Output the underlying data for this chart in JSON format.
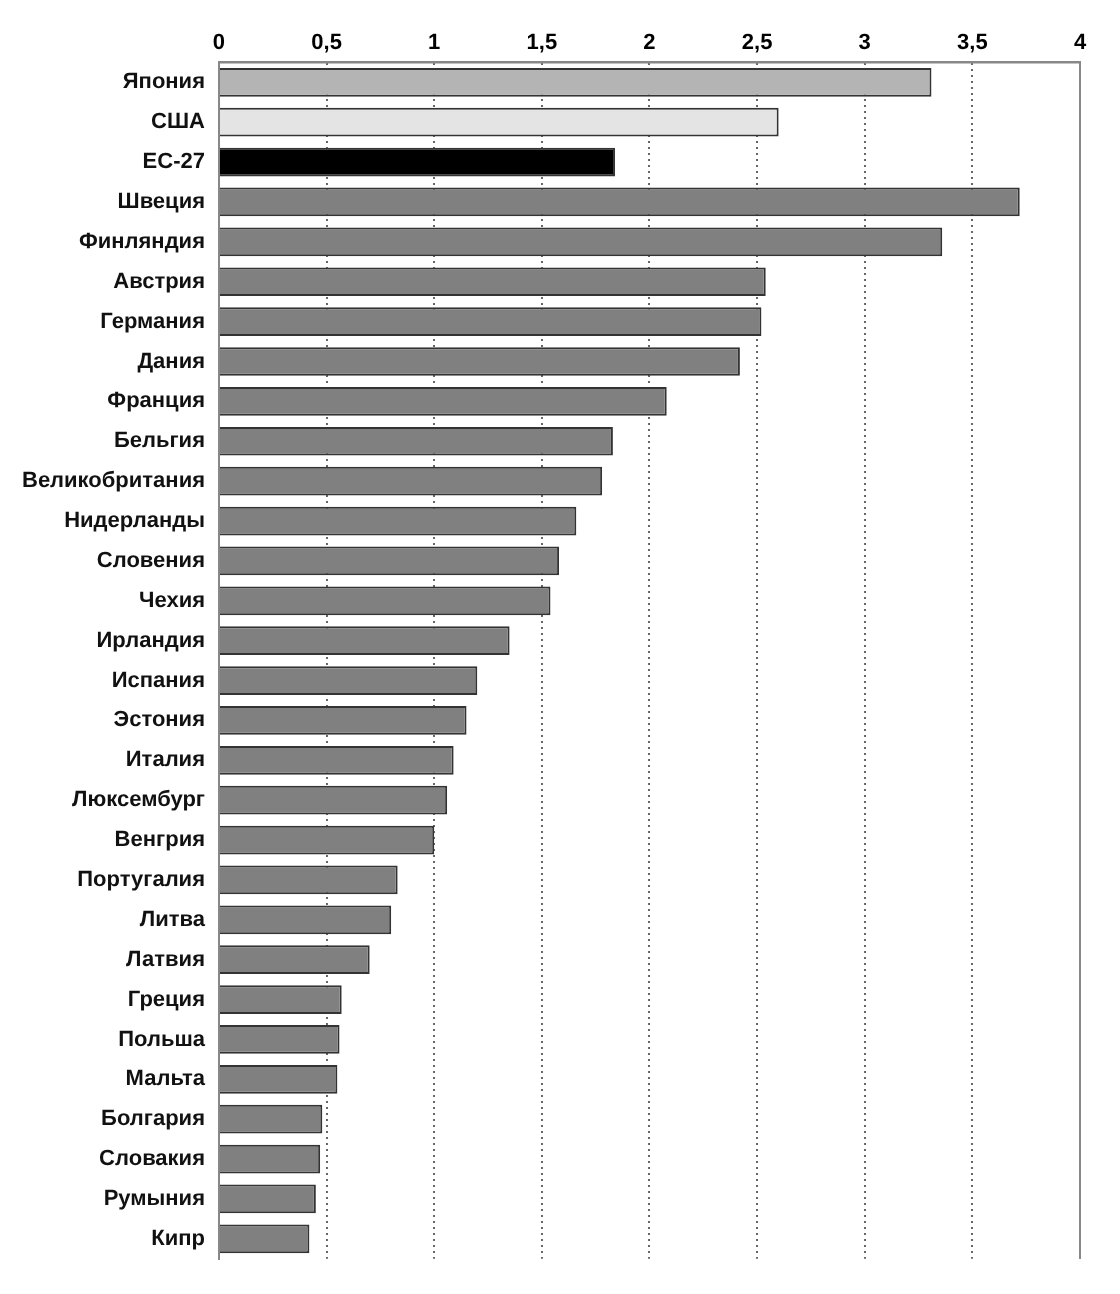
{
  "chart_data": {
    "type": "bar",
    "orientation": "horizontal",
    "categories": [
      "Япония",
      "США",
      "ЕС-27",
      "Швеция",
      "Финляндия",
      "Австрия",
      "Германия",
      "Дания",
      "Франция",
      "Бельгия",
      "Великобритания",
      "Нидерланды",
      "Словения",
      "Чехия",
      "Ирландия",
      "Испания",
      "Эстония",
      "Италия",
      "Люксембург",
      "Венгрия",
      "Португалия",
      "Литва",
      "Латвия",
      "Греция",
      "Польша",
      "Мальта",
      "Болгария",
      "Словакия",
      "Румыния",
      "Кипр"
    ],
    "values": [
      3.31,
      2.6,
      1.84,
      3.72,
      3.36,
      2.54,
      2.52,
      2.42,
      2.08,
      1.83,
      1.78,
      1.66,
      1.58,
      1.54,
      1.35,
      1.2,
      1.15,
      1.09,
      1.06,
      1.0,
      0.83,
      0.8,
      0.7,
      0.57,
      0.56,
      0.55,
      0.48,
      0.47,
      0.45,
      0.42
    ],
    "colors": [
      "#b4b4b4",
      "#e4e4e4",
      "#000000",
      "#808080",
      "#808080",
      "#808080",
      "#808080",
      "#808080",
      "#808080",
      "#808080",
      "#808080",
      "#808080",
      "#808080",
      "#808080",
      "#808080",
      "#808080",
      "#808080",
      "#808080",
      "#808080",
      "#808080",
      "#808080",
      "#808080",
      "#808080",
      "#808080",
      "#808080",
      "#808080",
      "#808080",
      "#808080",
      "#808080",
      "#808080"
    ],
    "xlim": [
      0,
      4
    ],
    "xticks": [
      0,
      {
        "value": 0.5,
        "label": "0,5"
      },
      1,
      {
        "value": 1.5,
        "label": "1,5"
      },
      2,
      {
        "value": 2.5,
        "label": "2,5"
      },
      3,
      {
        "value": 3.5,
        "label": "3,5"
      },
      4
    ],
    "grid": "x",
    "legend": false
  }
}
